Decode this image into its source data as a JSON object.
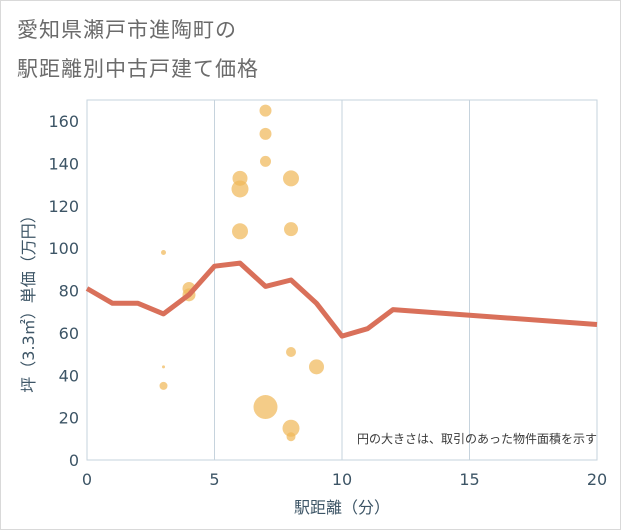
{
  "chart_data": {
    "type": "scatter",
    "title_line1": "愛知県瀬戸市進陶町の",
    "title_line2": "駅距離別中古戸建て価格",
    "xlabel": "駅距離（分）",
    "ylabel": "坪（3.3㎡）単価（万円）",
    "xlim": [
      0,
      20
    ],
    "ylim": [
      0,
      170
    ],
    "xticks": [
      0,
      5,
      10,
      15,
      20
    ],
    "yticks": [
      0,
      20,
      40,
      60,
      80,
      100,
      120,
      140,
      160
    ],
    "grid": true,
    "note": "円の大きさは、取引のあった物件面積を示す",
    "bubble_color": "#f0b95a",
    "line_color": "#d9705a",
    "points": [
      {
        "x": 3,
        "y": 98,
        "size": 3
      },
      {
        "x": 3,
        "y": 35,
        "size": 6
      },
      {
        "x": 3,
        "y": 44,
        "size": 1
      },
      {
        "x": 4,
        "y": 81,
        "size": 11
      },
      {
        "x": 4,
        "y": 78,
        "size": 11
      },
      {
        "x": 6,
        "y": 133,
        "size": 13
      },
      {
        "x": 6,
        "y": 128,
        "size": 15
      },
      {
        "x": 6,
        "y": 108,
        "size": 14
      },
      {
        "x": 7,
        "y": 165,
        "size": 10
      },
      {
        "x": 7,
        "y": 154,
        "size": 10
      },
      {
        "x": 7,
        "y": 141,
        "size": 9
      },
      {
        "x": 7,
        "y": 25,
        "size": 22
      },
      {
        "x": 8,
        "y": 133,
        "size": 14
      },
      {
        "x": 8,
        "y": 109,
        "size": 12
      },
      {
        "x": 8,
        "y": 51,
        "size": 8
      },
      {
        "x": 8,
        "y": 15,
        "size": 15
      },
      {
        "x": 8,
        "y": 11,
        "size": 7
      },
      {
        "x": 9,
        "y": 44,
        "size": 13
      }
    ],
    "series": [
      {
        "type": "line",
        "x": [
          0,
          1,
          2,
          3,
          4,
          5,
          6,
          7,
          8,
          9,
          10,
          11,
          12,
          20
        ],
        "y": [
          81,
          74,
          74,
          69,
          78,
          91.5,
          93,
          82,
          85,
          74,
          58.5,
          62,
          71,
          64
        ]
      }
    ]
  }
}
